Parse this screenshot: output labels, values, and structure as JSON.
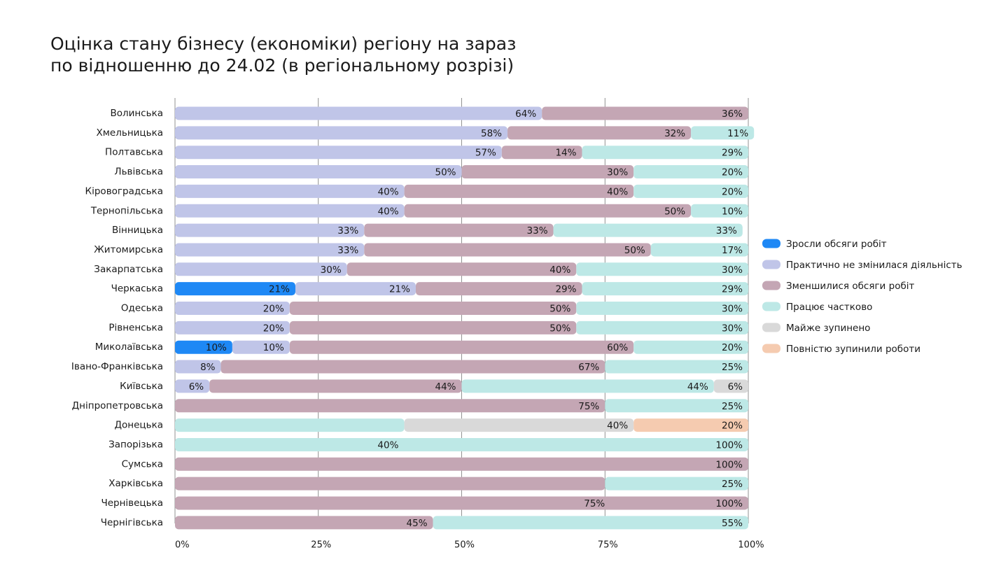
{
  "chart_data": {
    "type": "stacked-bar-horizontal",
    "title": [
      "Оцінка стану бізнесу (економіки) регіону на зараз",
      "по відношенню до 24.02 (в регіональному розрізі)"
    ],
    "categories": [
      "Волинська",
      "Хмельницька",
      "Полтавська",
      "Львівська",
      "Кіровоградська",
      "Тернопільська",
      "Вінницька",
      "Житомирська",
      "Закарпатська",
      "Черкаська",
      "Одеська",
      "Рівненська",
      "Миколаївська",
      "Івано-Франківська",
      "Київська",
      "Дніпропетровська",
      "Донецька",
      "Запорізька",
      "Сумська",
      "Харківська",
      "Чернівецька",
      "Чернігівська"
    ],
    "series": [
      {
        "name": "Зросли обсяги робіт",
        "color": "#1e88f5",
        "values": [
          null,
          null,
          null,
          null,
          null,
          null,
          null,
          null,
          null,
          21,
          null,
          null,
          10,
          null,
          null,
          null,
          null,
          null,
          null,
          null,
          null,
          null
        ],
        "value_labels": [
          null,
          null,
          null,
          null,
          null,
          null,
          null,
          null,
          null,
          "21%",
          null,
          null,
          "10%",
          null,
          null,
          null,
          null,
          null,
          null,
          null,
          null,
          null
        ]
      },
      {
        "name": "Практично не змінилася діяльність",
        "color": "#c0c5e8",
        "values": [
          64,
          58,
          57,
          50,
          40,
          40,
          33,
          33,
          30,
          21,
          20,
          20,
          10,
          8,
          6,
          null,
          null,
          null,
          null,
          null,
          null,
          null
        ],
        "value_labels": [
          "64%",
          "58%",
          "57%",
          "50%",
          "40%",
          "40%",
          "33%",
          "33%",
          "30%",
          "21%",
          "20%",
          "20%",
          "10%",
          "8%",
          "6%",
          null,
          null,
          null,
          null,
          null,
          null,
          null
        ]
      },
      {
        "name": "Зменшилися обсяги робіт",
        "color": "#c4a6b4",
        "values": [
          36,
          32,
          14,
          30,
          40,
          50,
          33,
          50,
          40,
          29,
          50,
          50,
          60,
          67,
          44,
          75,
          null,
          null,
          100,
          75,
          100,
          45
        ],
        "value_labels": [
          "36%",
          "32%",
          "14%",
          "30%",
          "40%",
          "50%",
          "33%",
          "50%",
          "40%",
          "29%",
          "50%",
          "50%",
          "60%",
          "67%",
          "44%",
          "75%",
          null,
          null,
          "100%",
          null,
          "100%",
          "45%"
        ]
      },
      {
        "name": "Працює частково",
        "color": "#bde8e6",
        "values": [
          null,
          11,
          29,
          20,
          20,
          10,
          33,
          17,
          30,
          29,
          30,
          30,
          20,
          25,
          44,
          25,
          40,
          100,
          null,
          25,
          null,
          55
        ],
        "value_labels": [
          null,
          "11%",
          "29%",
          "20%",
          "20%",
          "10%",
          "33%",
          "17%",
          "30%",
          "29%",
          "30%",
          "30%",
          "20%",
          "25%",
          "44%",
          "25%",
          null,
          "100%",
          null,
          "25%",
          null,
          "55%"
        ]
      },
      {
        "name": "Майже зупинено",
        "color": "#d9d9d9",
        "values": [
          null,
          null,
          null,
          null,
          null,
          null,
          null,
          null,
          null,
          null,
          null,
          null,
          null,
          null,
          6,
          null,
          40,
          null,
          null,
          null,
          null,
          null
        ],
        "value_labels": [
          null,
          null,
          null,
          null,
          null,
          null,
          null,
          null,
          null,
          null,
          null,
          null,
          null,
          null,
          "6%",
          null,
          "40%",
          null,
          null,
          null,
          null,
          null
        ]
      },
      {
        "name": "Повністю зупинили роботи",
        "color": "#f5cbb0",
        "values": [
          null,
          null,
          null,
          null,
          null,
          null,
          null,
          null,
          null,
          null,
          null,
          null,
          null,
          null,
          null,
          null,
          20,
          null,
          null,
          null,
          null,
          null
        ],
        "value_labels": [
          null,
          null,
          null,
          null,
          null,
          null,
          null,
          null,
          null,
          null,
          null,
          null,
          null,
          null,
          null,
          null,
          "20%",
          null,
          null,
          null,
          null,
          null
        ]
      }
    ],
    "annotations": [
      {
        "text": "40%",
        "category": "Запорізька",
        "x": 39
      },
      {
        "text": "75%",
        "category": "Чернівецька",
        "x": 75
      }
    ],
    "xlim": [
      0,
      100
    ],
    "xticks": [
      {
        "value": 0,
        "label": "0%"
      },
      {
        "value": 25,
        "label": "25%"
      },
      {
        "value": 50,
        "label": "50%"
      },
      {
        "value": 75,
        "label": "75%"
      },
      {
        "value": 100,
        "label": "100%"
      }
    ],
    "grid": true,
    "legend": "right"
  }
}
